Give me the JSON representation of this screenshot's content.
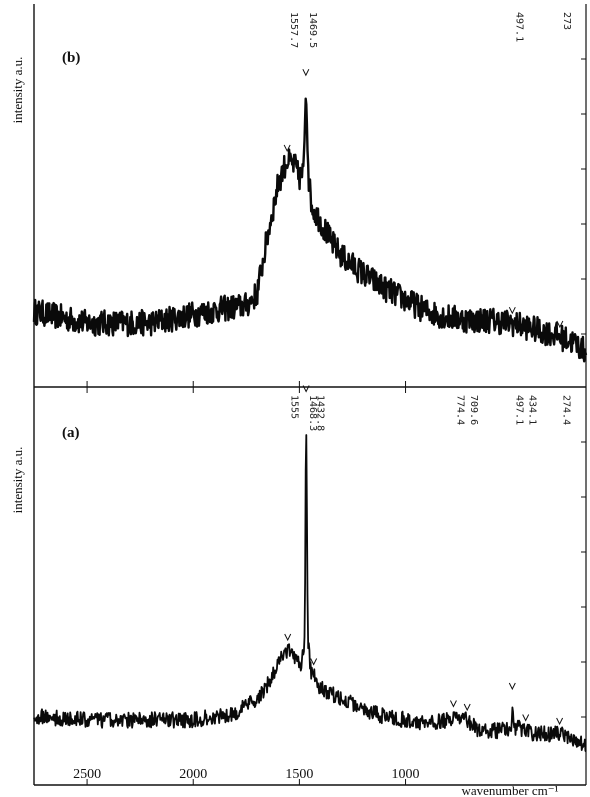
{
  "chart_data": [
    {
      "type": "line",
      "panel_label": "(b)",
      "ylabel": "intensity  a.u.",
      "xlabel": "",
      "xlim": [
        2750,
        150
      ],
      "x_reversed": true,
      "x_ticks": [
        2500,
        2000,
        1500,
        1000
      ],
      "peak_labels": [
        {
          "x": 1557.7,
          "text": "1557.7"
        },
        {
          "x": 1469.5,
          "text": "1469.5"
        },
        {
          "x": 497.1,
          "text": "497.1"
        },
        {
          "x": 273,
          "text": "273"
        }
      ],
      "series": [
        {
          "x": [
            2750,
            2500,
            2200,
            2000,
            1850,
            1750,
            1700,
            1650,
            1600,
            1560,
            1520,
            1500,
            1480,
            1469.5,
            1455,
            1440,
            1400,
            1350,
            1300,
            1200,
            1100,
            1000,
            900,
            800,
            700,
            600,
            500,
            400,
            300,
            200,
            150
          ],
          "y": [
            0.14,
            0.1,
            0.1,
            0.13,
            0.15,
            0.16,
            0.2,
            0.4,
            0.58,
            0.66,
            0.64,
            0.6,
            0.62,
            0.92,
            0.58,
            0.5,
            0.45,
            0.38,
            0.33,
            0.27,
            0.22,
            0.18,
            0.14,
            0.12,
            0.11,
            0.11,
            0.1,
            0.08,
            0.06,
            0.03,
            0.0
          ]
        }
      ]
    },
    {
      "type": "line",
      "panel_label": "(a)",
      "ylabel": "intensity  a.u.",
      "xlabel": "wavenumber cm⁻¹",
      "xlim": [
        2750,
        150
      ],
      "x_reversed": true,
      "x_ticks": [
        2500,
        2000,
        1500,
        1000
      ],
      "peak_labels": [
        {
          "x": 1555,
          "text": "1555"
        },
        {
          "x": 1468.3,
          "text": "1468.3"
        },
        {
          "x": 1432.8,
          "text": "1432.8"
        },
        {
          "x": 774.4,
          "text": "774.4"
        },
        {
          "x": 709.6,
          "text": "709.6"
        },
        {
          "x": 497.1,
          "text": "497.1"
        },
        {
          "x": 434.1,
          "text": "434.1"
        },
        {
          "x": 274.4,
          "text": "274.4"
        }
      ],
      "series": [
        {
          "x": [
            2750,
            2500,
            2200,
            2000,
            1800,
            1700,
            1650,
            1600,
            1570,
            1555,
            1520,
            1490,
            1475,
            1468.3,
            1460,
            1445,
            1432.8,
            1400,
            1300,
            1200,
            1100,
            1000,
            900,
            800,
            774.4,
            750,
            709.6,
            650,
            550,
            500,
            497.1,
            490,
            434.1,
            400,
            300,
            274.4,
            200,
            150
          ],
          "y": [
            0.09,
            0.08,
            0.08,
            0.08,
            0.1,
            0.14,
            0.18,
            0.24,
            0.27,
            0.28,
            0.26,
            0.24,
            0.3,
            0.99,
            0.3,
            0.22,
            0.21,
            0.17,
            0.14,
            0.11,
            0.09,
            0.08,
            0.07,
            0.08,
            0.09,
            0.08,
            0.08,
            0.05,
            0.05,
            0.06,
            0.14,
            0.06,
            0.05,
            0.04,
            0.04,
            0.04,
            0.02,
            0.01
          ]
        }
      ]
    }
  ]
}
